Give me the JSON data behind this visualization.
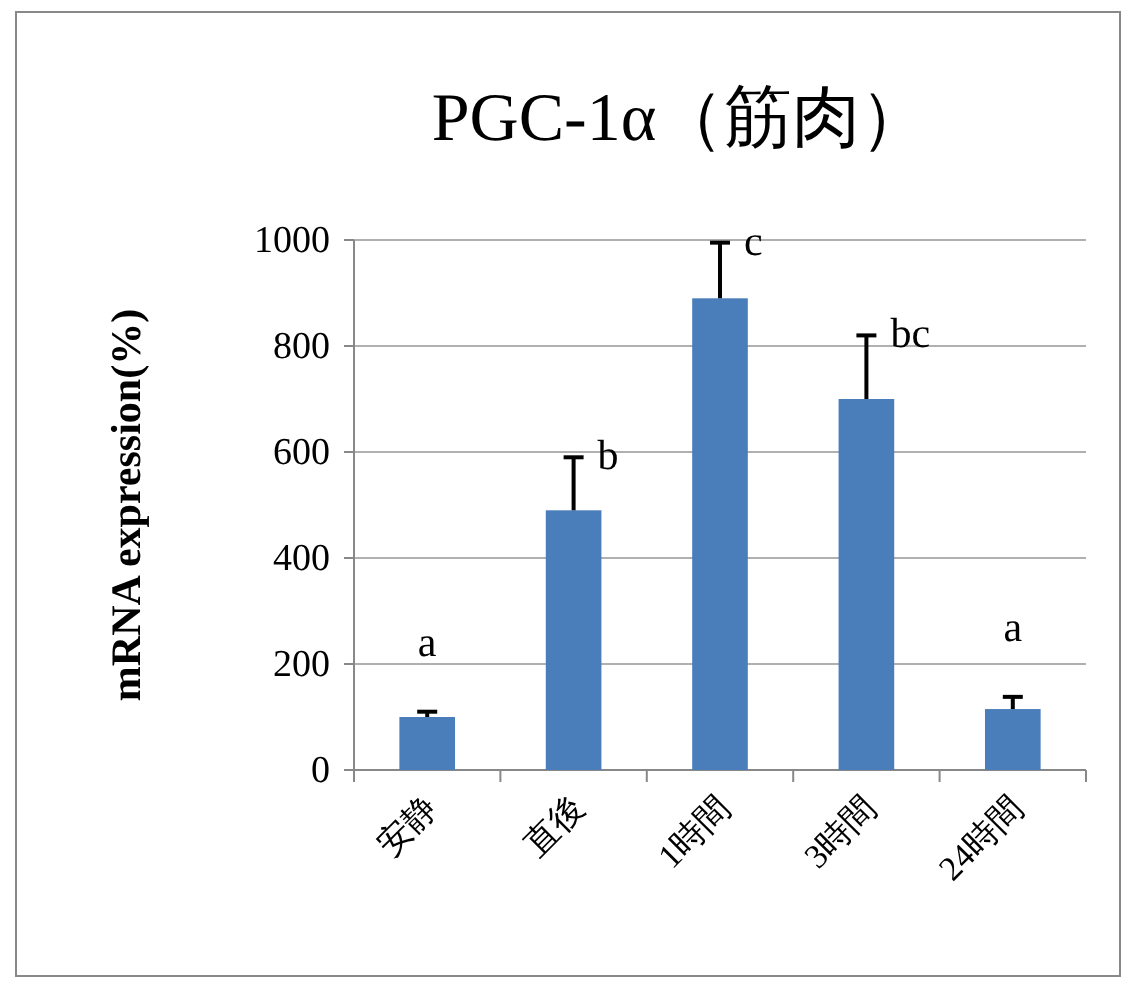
{
  "chart_data": {
    "type": "bar",
    "title": "PGC-1α（筋肉）",
    "ylabel": "mRNA expression(%)",
    "categories": [
      "安静",
      "直後",
      "1時間",
      "3時間",
      "24時間"
    ],
    "values": [
      100,
      490,
      890,
      700,
      115
    ],
    "errors": [
      [
        100,
        110
      ],
      [
        490,
        590
      ],
      [
        890,
        995
      ],
      [
        700,
        820
      ],
      [
        115,
        138
      ]
    ],
    "color": "#4a7ebb",
    "ylim": [
      0,
      1000
    ],
    "yticks": [
      0,
      200,
      400,
      600,
      800,
      1000
    ],
    "grid": "y",
    "annotations": [
      {
        "text": "a",
        "x": "安静",
        "y": 110
      },
      {
        "text": "b",
        "x": "直後",
        "y": 590
      },
      {
        "text": "c",
        "x": "1時間",
        "y": 995
      },
      {
        "text": "bc",
        "x": "3時間",
        "y": 820
      },
      {
        "text": "a",
        "x": "24時間",
        "y": 138
      }
    ]
  }
}
